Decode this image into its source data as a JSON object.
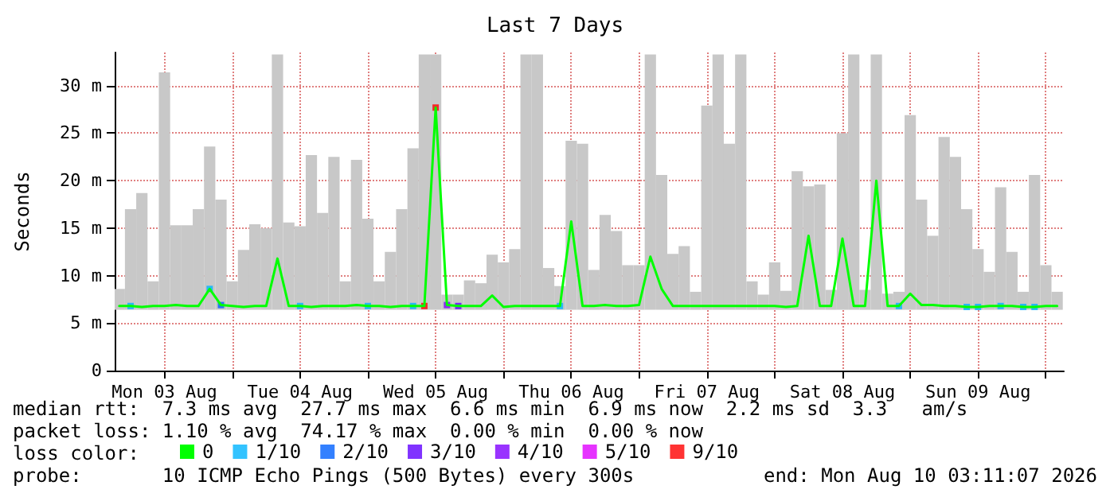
{
  "chart_data": {
    "type": "line",
    "title": "Last 7 Days",
    "ylabel": "Seconds",
    "x": [
      "2026-08-03T04:00",
      "2026-08-03T06:00",
      "2026-08-03T08:00",
      "2026-08-03T10:00",
      "2026-08-03T12:00",
      "2026-08-03T14:00",
      "2026-08-03T16:00",
      "2026-08-03T18:00",
      "2026-08-03T20:00",
      "2026-08-03T22:00",
      "2026-08-04T00:00",
      "2026-08-04T02:00",
      "2026-08-04T04:00",
      "2026-08-04T06:00",
      "2026-08-04T08:00",
      "2026-08-04T10:00",
      "2026-08-04T12:00",
      "2026-08-04T14:00",
      "2026-08-04T16:00",
      "2026-08-04T18:00",
      "2026-08-04T20:00",
      "2026-08-04T22:00",
      "2026-08-05T00:00",
      "2026-08-05T02:00",
      "2026-08-05T04:00",
      "2026-08-05T06:00",
      "2026-08-05T08:00",
      "2026-08-05T10:00",
      "2026-08-05T12:00",
      "2026-08-05T14:00",
      "2026-08-05T16:00",
      "2026-08-05T18:00",
      "2026-08-05T20:00",
      "2026-08-05T22:00",
      "2026-08-06T00:00",
      "2026-08-06T02:00",
      "2026-08-06T04:00",
      "2026-08-06T06:00",
      "2026-08-06T08:00",
      "2026-08-06T10:00",
      "2026-08-06T12:00",
      "2026-08-06T14:00",
      "2026-08-06T16:00",
      "2026-08-06T18:00",
      "2026-08-06T20:00",
      "2026-08-06T22:00",
      "2026-08-07T00:00",
      "2026-08-07T02:00",
      "2026-08-07T04:00",
      "2026-08-07T06:00",
      "2026-08-07T08:00",
      "2026-08-07T10:00",
      "2026-08-07T12:00",
      "2026-08-07T14:00",
      "2026-08-07T16:00",
      "2026-08-07T18:00",
      "2026-08-07T20:00",
      "2026-08-07T22:00",
      "2026-08-08T00:00",
      "2026-08-08T02:00",
      "2026-08-08T04:00",
      "2026-08-08T06:00",
      "2026-08-08T08:00",
      "2026-08-08T10:00",
      "2026-08-08T12:00",
      "2026-08-08T14:00",
      "2026-08-08T16:00",
      "2026-08-08T18:00",
      "2026-08-08T20:00",
      "2026-08-08T22:00",
      "2026-08-09T00:00",
      "2026-08-09T02:00",
      "2026-08-09T04:00",
      "2026-08-09T06:00",
      "2026-08-09T08:00",
      "2026-08-09T10:00",
      "2026-08-09T12:00",
      "2026-08-09T14:00",
      "2026-08-09T16:00",
      "2026-08-09T18:00",
      "2026-08-09T20:00",
      "2026-08-09T22:00",
      "2026-08-10T00:00",
      "2026-08-10T02:00"
    ],
    "series": [
      {
        "type": "bar",
        "color": "#c8c8c8",
        "base": [
          6.4,
          6.4,
          6.4,
          6.4,
          6.4,
          6.4,
          6.4,
          6.4,
          6.4,
          6.4,
          6.4,
          6.4,
          6.4,
          6.4,
          6.4,
          6.4,
          6.4,
          6.4,
          6.4,
          6.4,
          6.4,
          6.4,
          6.4,
          6.4,
          6.4,
          6.4,
          6.4,
          6.4,
          6.4,
          6.4,
          6.4,
          6.4,
          6.4,
          6.4,
          6.4,
          6.4,
          6.4,
          6.4,
          6.4,
          6.4,
          6.4,
          6.4,
          6.4,
          6.4,
          6.4,
          6.4,
          6.4,
          6.4,
          6.4,
          6.4,
          6.4,
          6.4,
          6.4,
          6.4,
          6.4,
          6.4,
          6.4,
          6.4,
          6.4,
          6.4,
          6.4,
          6.4,
          6.4,
          6.4,
          6.4,
          6.4,
          6.4,
          6.4,
          6.4,
          6.4,
          6.4,
          6.4,
          6.4,
          6.4,
          6.4,
          6.4,
          6.4,
          6.4,
          6.4,
          6.4,
          6.4,
          6.4,
          6.4,
          6.4
        ],
        "values": [
          2.2,
          10.6,
          12.3,
          3,
          25,
          8.9,
          8.9,
          10.6,
          17.2,
          11.6,
          3,
          6.3,
          9,
          8.6,
          26.9,
          9.2,
          8.8,
          16.3,
          10.2,
          16.1,
          3,
          15.8,
          9.6,
          3,
          6.1,
          10.6,
          17,
          26.9,
          26.9,
          1.6,
          1.6,
          3.1,
          2.8,
          5.8,
          5,
          6.4,
          26.9,
          26.9,
          4.4,
          2.5,
          17.8,
          17.5,
          4.2,
          10,
          8.3,
          4.7,
          4.7,
          26.9,
          14.2,
          5.9,
          6.7,
          1.9,
          21.5,
          26.9,
          17.5,
          26.9,
          3,
          1.6,
          5,
          2,
          14.6,
          13,
          13.2,
          2.1,
          18.6,
          26.9,
          2.1,
          26.9,
          1.7,
          1.9,
          20.5,
          11.6,
          7.8,
          18.2,
          16.1,
          10.6,
          6.4,
          4,
          12.9,
          6.1,
          1.9,
          14.2,
          4.7,
          1.9
        ]
      },
      {
        "name": "0",
        "color": "#00ff00",
        "values": [
          6.8,
          6.8,
          6.7,
          6.8,
          6.8,
          6.9,
          6.8,
          6.8,
          8.6,
          6.9,
          6.8,
          6.7,
          6.8,
          6.8,
          11.8,
          6.8,
          6.8,
          6.7,
          6.8,
          6.8,
          6.8,
          6.9,
          6.8,
          6.8,
          6.7,
          6.8,
          6.8,
          6.8,
          27.7,
          6.9,
          6.8,
          6.8,
          6.8,
          7.9,
          6.7,
          6.8,
          6.8,
          6.8,
          6.8,
          6.8,
          15.7,
          6.8,
          6.8,
          6.9,
          6.8,
          6.8,
          6.9,
          12,
          8.6,
          6.8,
          6.8,
          6.8,
          6.8,
          6.8,
          6.8,
          6.8,
          6.8,
          6.8,
          6.8,
          6.7,
          6.8,
          14.2,
          6.8,
          6.8,
          13.9,
          6.8,
          6.8,
          20,
          6.8,
          6.8,
          8.1,
          6.9,
          6.9,
          6.8,
          6.8,
          6.7,
          6.7,
          6.8,
          6.8,
          6.8,
          6.7,
          6.7,
          6.8,
          6.8
        ]
      },
      {
        "type": "scatter",
        "name": "1/10",
        "color": "#00b4ff",
        "marker": "square",
        "x": [
          "2026-08-03T06:00",
          "2026-08-03T20:00",
          "2026-08-04T12:00",
          "2026-08-05T00:00",
          "2026-08-05T08:00",
          "2026-08-06T10:00",
          "2026-08-08T22:00",
          "2026-08-09T10:00",
          "2026-08-09T12:00",
          "2026-08-09T16:00",
          "2026-08-09T20:00",
          "2026-08-09T22:00"
        ],
        "values": [
          6.8,
          8.6,
          6.8,
          6.8,
          6.8,
          6.8,
          6.8,
          6.7,
          6.7,
          6.8,
          6.7,
          6.7
        ]
      },
      {
        "type": "scatter",
        "name": "2/10",
        "color": "#0060ff",
        "marker": "square",
        "x": [
          "2026-08-03T22:00"
        ],
        "values": [
          6.9
        ]
      },
      {
        "type": "scatter",
        "name": "3/10",
        "color": "#6000ff",
        "marker": "square",
        "x": [
          "2026-08-05T16:00"
        ],
        "values": [
          6.8
        ]
      },
      {
        "type": "scatter",
        "name": "4/10",
        "color": "#8000ff",
        "marker": "square",
        "x": [
          "2026-08-05T14:00"
        ],
        "values": [
          6.9
        ]
      },
      {
        "type": "scatter",
        "name": "5/10",
        "color": "#e000ff",
        "marker": "square",
        "values": [
          null,
          null,
          null,
          null,
          null,
          null,
          null,
          null,
          null,
          null,
          null,
          null,
          null,
          null,
          null,
          null,
          null,
          null,
          null,
          null,
          null,
          null,
          null,
          null,
          null,
          null,
          null,
          null,
          null,
          null,
          null,
          null,
          null,
          null,
          null,
          null,
          null,
          null,
          null,
          null,
          null,
          null,
          null,
          null,
          null,
          null,
          null,
          null,
          null,
          null,
          null,
          null,
          null,
          null,
          null,
          null,
          null,
          null,
          null,
          null,
          null,
          null,
          null,
          null,
          null,
          null,
          null,
          null,
          null,
          null,
          null,
          null,
          null,
          null,
          null,
          null,
          null,
          null,
          null,
          null,
          null,
          null,
          null,
          null
        ]
      },
      {
        "type": "scatter",
        "name": "9/10",
        "color": "#ff0000",
        "marker": "square",
        "x": [
          "2026-08-05T10:00",
          "2026-08-05T12:00"
        ],
        "values": [
          6.8,
          27.7
        ]
      }
    ],
    "xlim": [
      "2026-08-03T03:11",
      "2026-08-10T03:11"
    ],
    "xticks": [
      {
        "value": "2026-08-04T00:00",
        "label": null
      },
      {
        "value": "2026-08-05T00:00",
        "label": null
      },
      {
        "value": "2026-08-06T00:00",
        "label": null
      },
      {
        "value": "2026-08-07T00:00",
        "label": null
      },
      {
        "value": "2026-08-08T00:00",
        "label": null
      },
      {
        "value": "2026-08-09T00:00",
        "label": null
      },
      {
        "value": "2026-08-10T00:00",
        "label": null
      },
      {
        "value": "2026-08-03T12:00",
        "label": "Mon 03 Aug"
      },
      {
        "value": "2026-08-04T12:00",
        "label": "Tue 04 Aug"
      },
      {
        "value": "2026-08-05T12:00",
        "label": "Wed 05 Aug"
      },
      {
        "value": "2026-08-06T12:00",
        "label": "Thu 06 Aug"
      },
      {
        "value": "2026-08-07T12:00",
        "label": "Fri 07 Aug"
      },
      {
        "value": "2026-08-08T12:00",
        "label": "Sat 08 Aug"
      },
      {
        "value": "2026-08-09T12:00",
        "label": "Sun 09 Aug"
      }
    ],
    "ylim": [
      0,
      33.5
    ],
    "yticks": [
      0,
      {
        "value": 5,
        "label": "5 m"
      },
      {
        "value": 10,
        "label": "10 m"
      },
      {
        "value": 15,
        "label": "15 m"
      },
      {
        "value": 20,
        "label": "20 m"
      },
      {
        "value": 25,
        "label": "25 m"
      },
      {
        "value": 30,
        "label": "30 m"
      }
    ],
    "grid": true,
    "legend": "bottom left",
    "annotations": [
      "median rtt:  7.3 ms avg  27.7 ms max  6.6 ms min  6.9 ms now  2.2 ms sd  3.3   am/s",
      "packet loss: 1.10 % avg  74.17 % max  0.00 % min  0.00 % now",
      "loss color:",
      "probe:       10 ICMP Echo Pings (500 Bytes) every 300s",
      "end: Mon Aug 10 03:11:07 2026"
    ]
  }
}
